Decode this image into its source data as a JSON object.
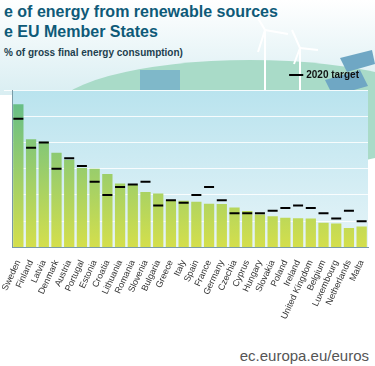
{
  "chart_data": {
    "type": "bar",
    "title": "e of energy from renewable sources\ne EU Member States",
    "subtitle": "% of gross final energy consumption)",
    "source": "ec.europa.eu/euros",
    "categories": [
      "Sweden",
      "Finland",
      "Latvia",
      "Denmark",
      "Austria",
      "Portugal",
      "Estonia",
      "Croatia",
      "Lithuania",
      "Romania",
      "Slovenia",
      "Bulgaria",
      "Greece",
      "Italy",
      "Spain",
      "France",
      "Germany",
      "Czechia",
      "Cyprus",
      "Hungary",
      "Slovakia",
      "Poland",
      "Ireland",
      "United Kingdom",
      "Belgium",
      "Luxembourg",
      "Netherlands",
      "Malta"
    ],
    "series": [
      {
        "type": "bar",
        "color": "#5dbb8c",
        "values": [
          54.6,
          41.2,
          40.3,
          36.1,
          33.4,
          30.3,
          30.0,
          28.0,
          24.4,
          23.9,
          21.1,
          20.5,
          18.0,
          17.8,
          17.4,
          16.6,
          16.5,
          15.2,
          13.9,
          12.5,
          11.9,
          11.3,
          11.1,
          11.0,
          9.4,
          9.1,
          7.4,
          8.0
        ]
      },
      {
        "name": "2020 target",
        "type": "line",
        "marker": "line",
        "line_style": "none",
        "color": "#000000",
        "values": [
          49,
          38,
          40,
          30,
          34,
          31,
          25,
          20,
          23,
          24,
          25,
          16,
          18,
          17,
          20,
          23,
          18,
          13,
          13,
          13,
          14,
          15,
          16,
          15,
          13,
          11,
          14,
          10
        ]
      }
    ],
    "ylim": [
      0,
      60
    ],
    "yticks": [
      0,
      10,
      20,
      30,
      40,
      50,
      60
    ],
    "grid": true,
    "legend": "upper right",
    "tick_labels": "x"
  }
}
